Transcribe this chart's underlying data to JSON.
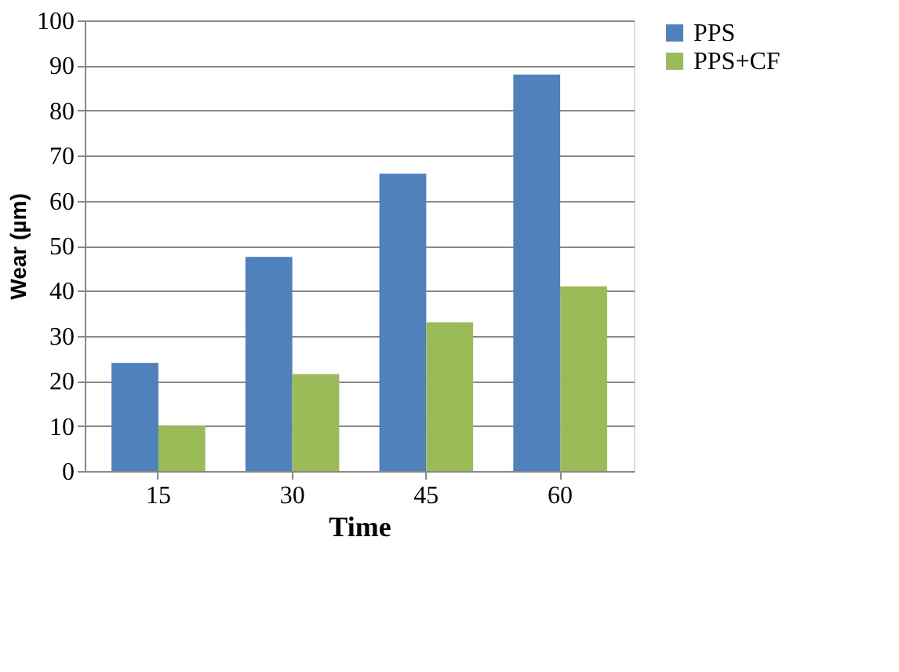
{
  "chart_data": {
    "type": "bar",
    "xlabel": "Time",
    "ylabel": "Wear (µm)",
    "categories": [
      "15",
      "30",
      "45",
      "60"
    ],
    "series": [
      {
        "name": "PPS",
        "color": "#4f81bd",
        "values": [
          24,
          47.5,
          66,
          88
        ]
      },
      {
        "name": "PPS+CF",
        "color": "#9bbb59",
        "values": [
          10,
          21.5,
          33,
          41
        ]
      }
    ],
    "ylim": [
      0,
      100
    ],
    "yticks": [
      0,
      10,
      20,
      30,
      40,
      50,
      60,
      70,
      80,
      90,
      100
    ],
    "grid": "y",
    "legend": "top right"
  }
}
